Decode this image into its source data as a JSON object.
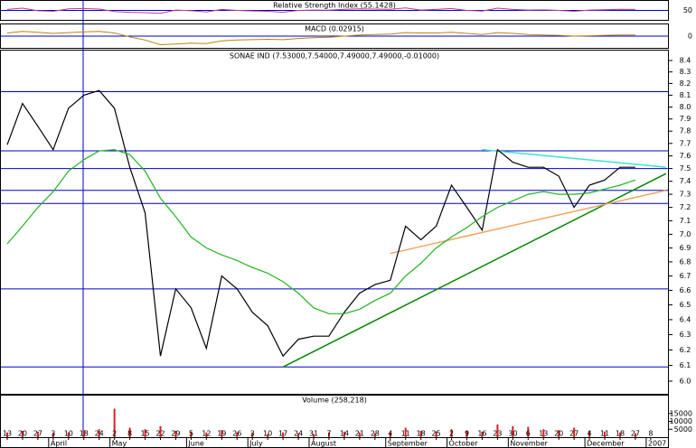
{
  "chart_data": {
    "type": "line",
    "title": "SONAE IND (7.53000,7.54000,7.49000,7.49000,-0.01000)",
    "log_scale": true,
    "categories": [
      "13",
      "20",
      "27",
      "3",
      "10",
      "18",
      "24",
      "2",
      "8",
      "15",
      "22",
      "29",
      "5",
      "12",
      "19",
      "26",
      "3",
      "10",
      "17",
      "24",
      "31",
      "7",
      "14",
      "21",
      "28",
      "4",
      "11",
      "18",
      "25",
      "2",
      "9",
      "16",
      "23",
      "30",
      "6",
      "13",
      "20",
      "27",
      "4",
      "11",
      "18",
      "27",
      "8"
    ],
    "month_labels": [
      null,
      null,
      null,
      "April",
      null,
      null,
      null,
      "May",
      null,
      null,
      null,
      null,
      "June",
      null,
      null,
      null,
      "July",
      null,
      null,
      null,
      "August",
      null,
      null,
      null,
      null,
      "September",
      null,
      null,
      null,
      "October",
      null,
      null,
      null,
      "November",
      null,
      null,
      null,
      null,
      "December",
      null,
      null,
      null,
      "2007"
    ],
    "series": [
      {
        "name": "Price",
        "color": "#000000",
        "values": [
          7.69,
          8.03,
          7.84,
          7.65,
          7.99,
          8.1,
          8.14,
          7.99,
          7.51,
          7.16,
          6.16,
          6.61,
          6.48,
          6.21,
          6.7,
          6.61,
          6.45,
          6.36,
          6.16,
          6.27,
          6.29,
          6.29,
          6.45,
          6.58,
          6.64,
          6.67,
          7.06,
          6.96,
          7.06,
          7.37,
          7.2,
          7.03,
          7.65,
          7.55,
          7.51,
          7.51,
          7.44,
          7.2,
          7.37,
          7.41,
          7.51,
          7.51,
          null
        ]
      },
      {
        "name": "Moving Average",
        "color": "#22b422",
        "values": [
          6.93,
          7.06,
          7.2,
          7.32,
          7.48,
          7.57,
          7.64,
          7.65,
          7.61,
          7.48,
          7.27,
          7.13,
          6.98,
          6.9,
          6.85,
          6.81,
          6.76,
          6.72,
          6.66,
          6.58,
          6.48,
          6.44,
          6.44,
          6.47,
          6.53,
          6.58,
          6.7,
          6.79,
          6.9,
          6.98,
          7.05,
          7.13,
          7.2,
          7.25,
          7.3,
          7.32,
          7.3,
          7.3,
          7.31,
          7.34,
          7.37,
          7.41,
          null
        ]
      }
    ],
    "levels": {
      "color": "#0000cc",
      "values": [
        8.13,
        7.64,
        7.5,
        7.33,
        7.23,
        6.61,
        6.09
      ]
    },
    "trendlines": [
      {
        "color": "#008800",
        "from": [
          18,
          6.09
        ],
        "to": [
          43,
          7.46
        ]
      },
      {
        "color": "#f4a460",
        "from": [
          25,
          6.86
        ],
        "to": [
          43,
          7.33
        ]
      },
      {
        "color": "#40e0d0",
        "from": [
          31,
          7.65
        ],
        "to": [
          43,
          7.51
        ]
      }
    ],
    "ylim": [
      6.0,
      8.4
    ],
    "yticks": [
      {
        "value": 6,
        "label": "6.0"
      },
      6.1,
      6.2,
      6.3,
      6.4,
      6.5,
      6.6,
      6.7,
      6.8,
      6.9,
      {
        "value": 7,
        "label": "7.0"
      },
      7.1,
      7.2,
      7.3,
      7.4,
      7.5,
      7.6,
      7.7,
      7.8,
      7.9,
      {
        "value": 8,
        "label": "8.0"
      },
      8.1,
      8.2,
      8.3,
      8.4
    ],
    "rsi": {
      "title": "Relative Strength Index (55.1428)",
      "color": "#c0408a",
      "ylim": [
        0,
        100
      ],
      "yticks": [
        50
      ],
      "values": [
        55,
        62,
        48,
        45,
        58,
        60,
        57,
        44,
        40,
        38,
        35,
        52,
        48,
        42,
        55,
        50,
        47,
        45,
        40,
        50,
        52,
        51,
        56,
        58,
        57,
        56,
        63,
        52,
        55,
        60,
        50,
        46,
        62,
        55,
        52,
        53,
        50,
        45,
        52,
        54,
        56,
        55,
        null
      ]
    },
    "macd": {
      "title": "MACD (0.02915)",
      "color": "#b8860b",
      "ylim": [
        -0.3,
        0.3
      ],
      "yticks": [
        0
      ],
      "values": [
        0.08,
        0.12,
        0.1,
        0.07,
        0.09,
        0.11,
        0.12,
        0.08,
        -0.02,
        -0.1,
        -0.22,
        -0.2,
        -0.18,
        -0.19,
        -0.12,
        -0.1,
        -0.09,
        -0.08,
        -0.09,
        -0.06,
        -0.04,
        -0.03,
        0.0,
        0.03,
        0.04,
        0.05,
        0.09,
        0.08,
        0.08,
        0.1,
        0.07,
        0.04,
        0.09,
        0.07,
        0.04,
        0.03,
        0.02,
        0.0,
        0.01,
        0.02,
        0.03,
        0.03,
        null
      ]
    },
    "volume": {
      "title": "Volume (258,218)",
      "color": "#dd2222",
      "ylim": [
        0,
        20000
      ],
      "yticks": [
        5000,
        10000,
        15000
      ],
      "values": [
        3000,
        4000,
        3500,
        2500,
        3000,
        4500,
        5000,
        18000,
        6000,
        5000,
        7000,
        4000,
        3500,
        3000,
        4500,
        3000,
        2500,
        2000,
        3000,
        2500,
        2000,
        3000,
        3500,
        3000,
        2500,
        3000,
        6000,
        4000,
        3500,
        5000,
        4000,
        3500,
        8000,
        7000,
        6500,
        5000,
        4500,
        6000,
        4000,
        3500,
        3000,
        2500,
        null
      ]
    }
  }
}
